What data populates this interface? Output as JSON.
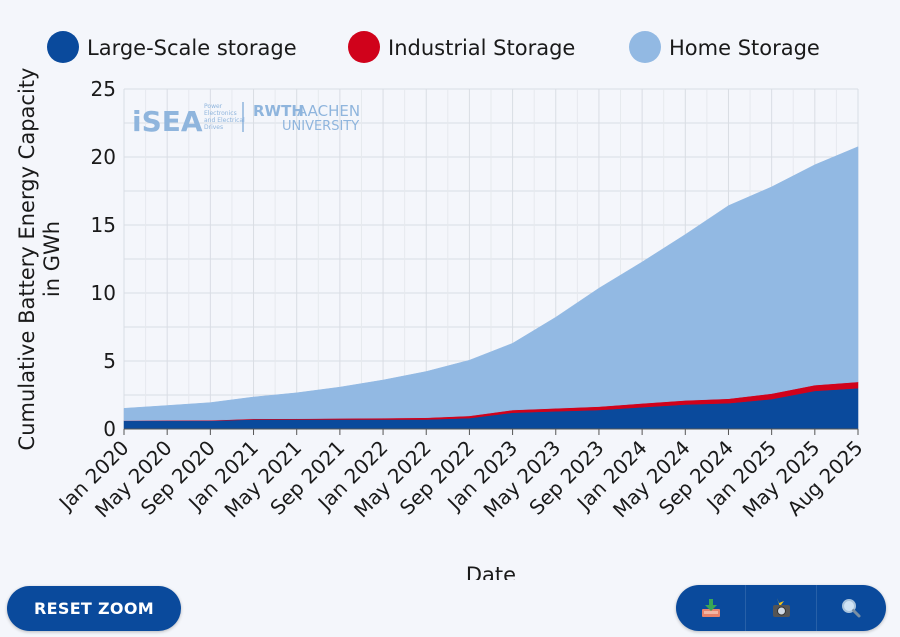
{
  "chart_data": {
    "type": "area",
    "stacked": true,
    "xlabel": "Date",
    "ylabel_lines": [
      "Cumulative Battery Energy Capacity",
      "in GWh"
    ],
    "ylim": [
      0,
      25
    ],
    "yticks": [
      0,
      5,
      10,
      15,
      20,
      25
    ],
    "xticks": [
      "Jan 2020",
      "May 2020",
      "Sep 2020",
      "Jan 2021",
      "May 2021",
      "Sep 2021",
      "Jan 2022",
      "May 2022",
      "Sep 2022",
      "Jan 2023",
      "May 2023",
      "Sep 2023",
      "Jan 2024",
      "May 2024",
      "Sep 2024",
      "Jan 2025",
      "May 2025",
      "Aug 2025"
    ],
    "x": [
      "Jan 2020",
      "May 2020",
      "Sep 2020",
      "Jan 2021",
      "May 2021",
      "Sep 2021",
      "Jan 2022",
      "May 2022",
      "Sep 2022",
      "Jan 2023",
      "May 2023",
      "Sep 2023",
      "Jan 2024",
      "May 2024",
      "Sep 2024",
      "Jan 2025",
      "May 2025",
      "Aug 2025"
    ],
    "grid": true,
    "legend_position": "top",
    "series": [
      {
        "name": "Large-Scale storage",
        "color": "#0a4a9c",
        "values": [
          0.6,
          0.6,
          0.6,
          0.7,
          0.7,
          0.7,
          0.7,
          0.7,
          0.8,
          1.2,
          1.3,
          1.4,
          1.6,
          1.8,
          1.9,
          2.2,
          2.8,
          3.0
        ]
      },
      {
        "name": "Industrial Storage",
        "color": "#d0021b",
        "values": [
          0.02,
          0.03,
          0.04,
          0.05,
          0.06,
          0.08,
          0.1,
          0.13,
          0.16,
          0.2,
          0.22,
          0.25,
          0.28,
          0.3,
          0.33,
          0.4,
          0.43,
          0.46
        ]
      },
      {
        "name": "Home Storage",
        "color": "#92b9e3",
        "values": [
          0.9,
          1.1,
          1.3,
          1.6,
          1.9,
          2.3,
          2.8,
          3.4,
          4.1,
          4.9,
          6.7,
          8.7,
          10.4,
          12.2,
          14.2,
          15.2,
          16.2,
          17.3
        ]
      }
    ]
  },
  "logo": {
    "isea": "iSEA",
    "isea_caption": [
      "Power",
      "Electronics",
      "and Electrical",
      "Drives"
    ],
    "rwth": "RWTH",
    "aachen": "AACHEN",
    "university": "UNIVERSITY"
  },
  "controls": {
    "reset_zoom_label": "RESET ZOOM",
    "download_icon": "download-tray-icon",
    "snapshot_icon": "camera-flash-icon",
    "zoom_icon": "magnifier-icon"
  }
}
